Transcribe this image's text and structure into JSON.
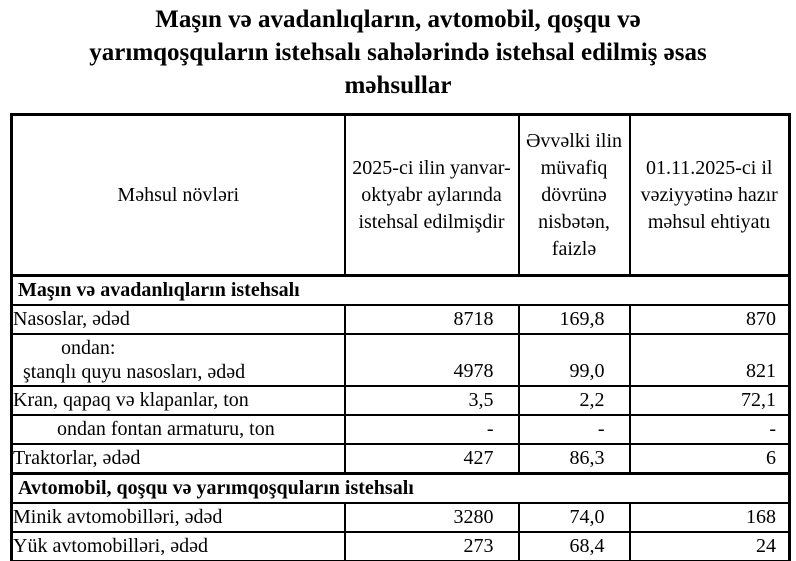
{
  "colors": {
    "text": "#000000",
    "border": "#000000",
    "background": "#ffffff"
  },
  "title": {
    "lines": [
      "Maşın və avadanlıqların, avtomobil, qoşqu və",
      "yarımqoşquların istehsalı sahələrində istehsal edilmiş əsas",
      "məhsullar"
    ]
  },
  "table": {
    "columns": {
      "product": "Məhsul növləri",
      "produced": "2025-ci ilin yanvar-oktyabr aylarında istehsal edilmişdir",
      "percent": "Əvvəlki ilin müvafiq dövrünə nisbətən, faizlə",
      "stock": "01.11.2025-ci il vəziyyətinə hazır məhsul ehtiyatı"
    },
    "rows": [
      {
        "kind": "section",
        "label": "Maşın və avadanlıqların istehsalı"
      },
      {
        "kind": "data",
        "label": "Nasoslar, ədəd",
        "produced": "8718",
        "percent": "169,8",
        "stock": "870"
      },
      {
        "kind": "data",
        "label_line1": "ondan:",
        "label_line2": "ştanqlı quyu nasosları, ədəd",
        "produced": "4978",
        "percent": "99,0",
        "stock": "821"
      },
      {
        "kind": "data",
        "label": "Kran, qapaq və klapanlar, ton",
        "produced": "3,5",
        "percent": "2,2",
        "stock": "72,1"
      },
      {
        "kind": "data",
        "label": "ondan fontan armaturu, ton",
        "produced": "-",
        "percent": "-",
        "stock": "-"
      },
      {
        "kind": "data",
        "label": "Traktorlar, ədəd",
        "produced": "427",
        "percent": "86,3",
        "stock": "6"
      },
      {
        "kind": "section",
        "label": "Avtomobil, qoşqu və yarımqoşquların istehsalı"
      },
      {
        "kind": "data",
        "label": "Minik avtomobilləri, ədəd",
        "produced": "3280",
        "percent": "74,0",
        "stock": "168"
      },
      {
        "kind": "data",
        "label": "Yük avtomobilləri, ədəd",
        "produced": "273",
        "percent": "68,4",
        "stock": "24"
      }
    ]
  }
}
